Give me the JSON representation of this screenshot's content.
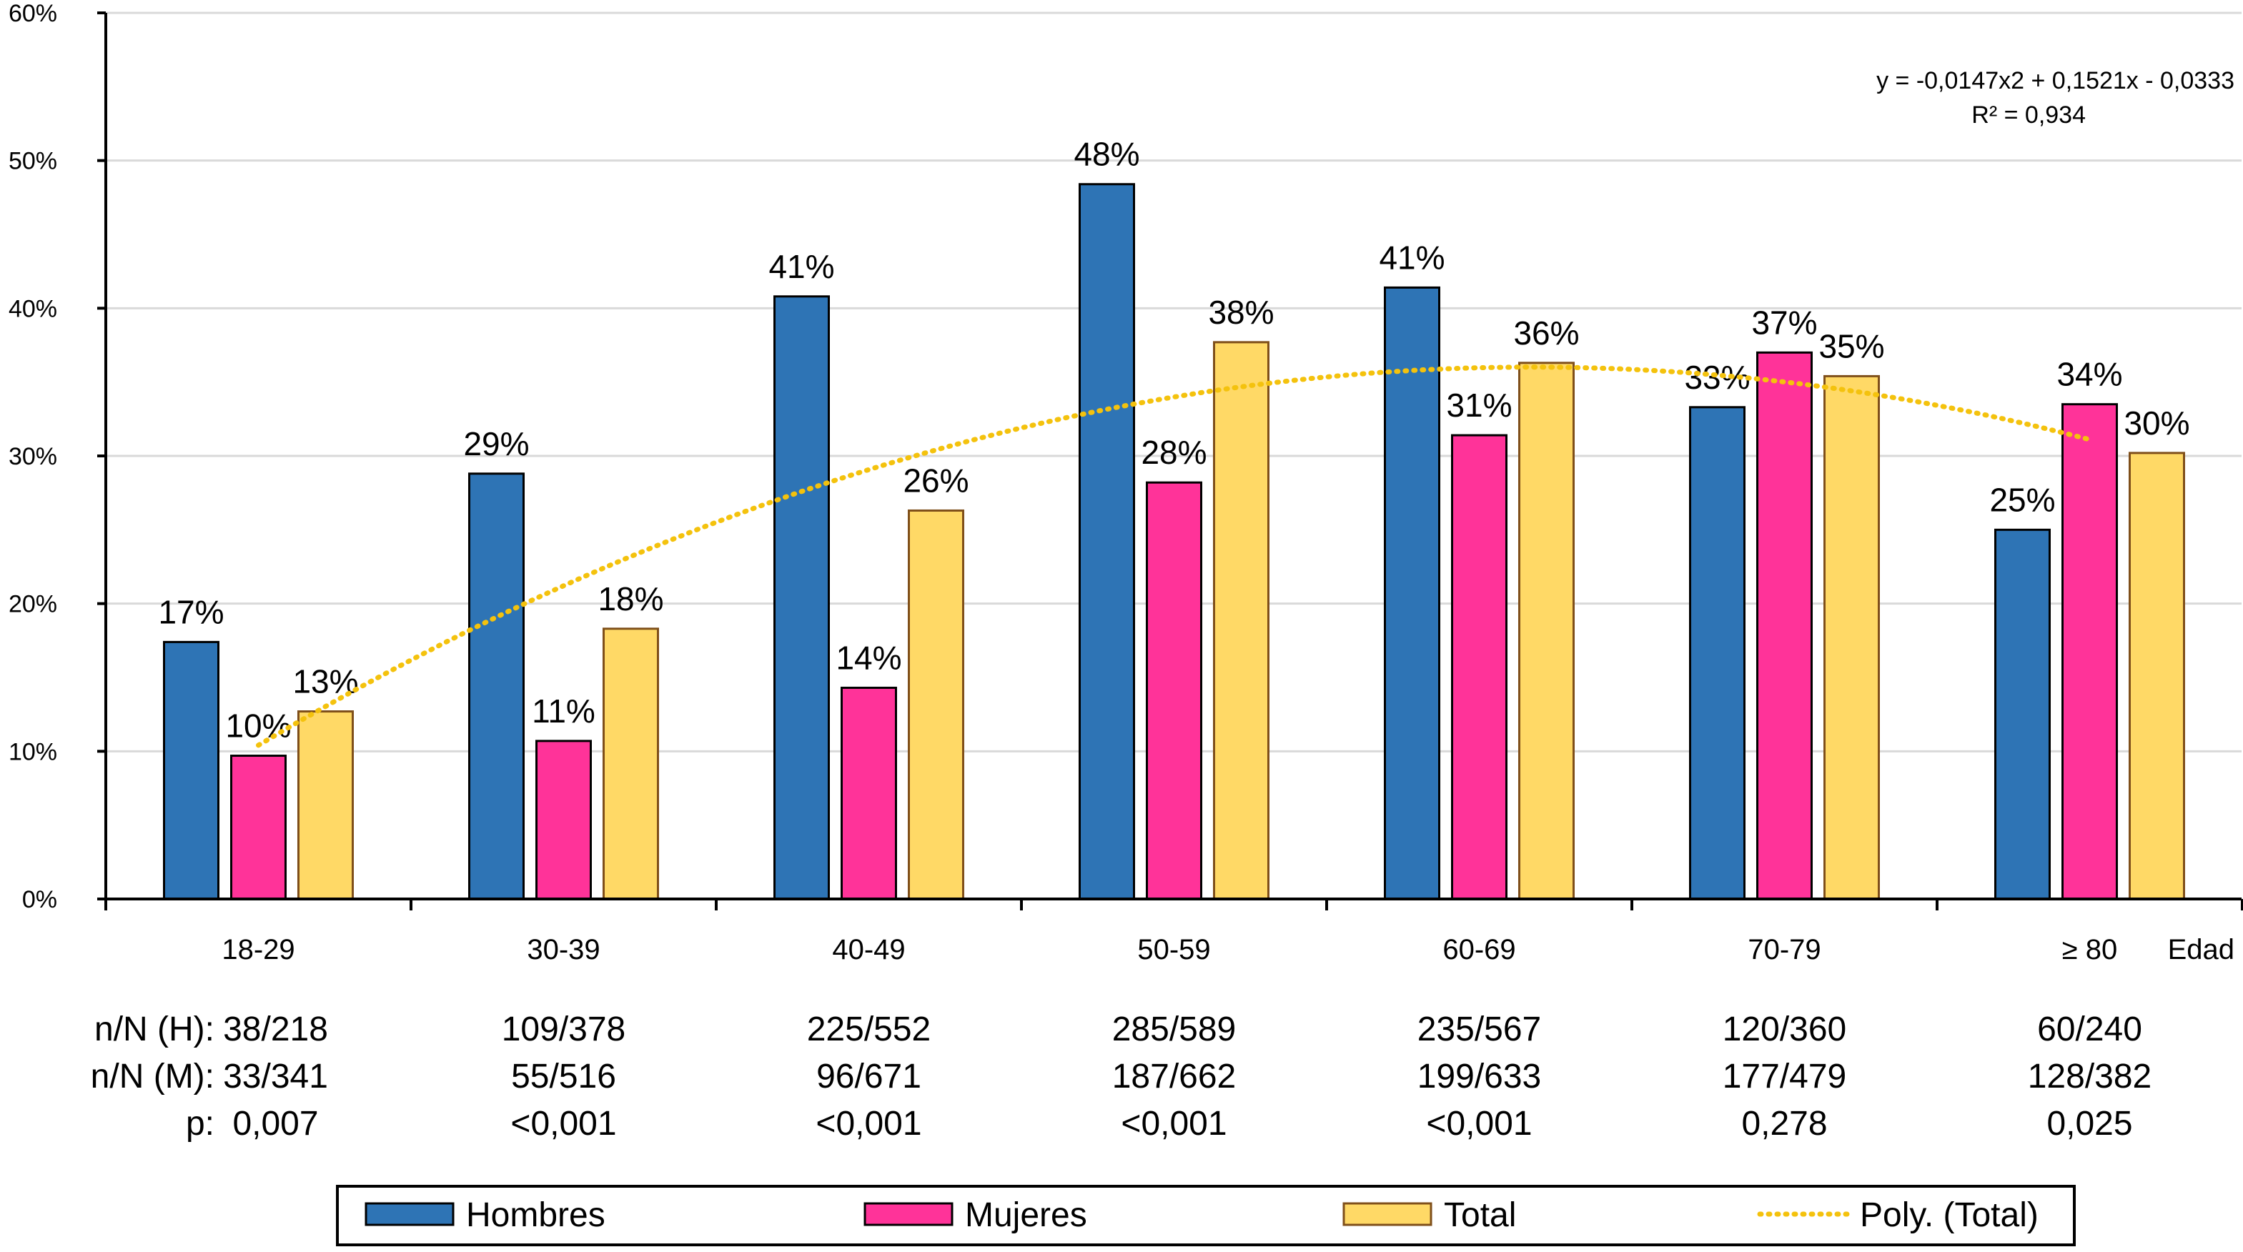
{
  "chart_data": {
    "type": "bar",
    "categories": [
      "18-29",
      "30-39",
      "40-49",
      "50-59",
      "60-69",
      "70-79",
      "≥ 80"
    ],
    "x_axis_end_label": "Edad",
    "ylim": [
      0,
      60
    ],
    "y_ticks": [
      "0%",
      "10%",
      "20%",
      "30%",
      "40%",
      "50%",
      "60%"
    ],
    "y_tick_values": [
      0,
      10,
      20,
      30,
      40,
      50,
      60
    ],
    "series": [
      {
        "name": "Hombres",
        "color": "#2E74B5",
        "values": [
          17.4,
          28.8,
          40.8,
          48.4,
          41.4,
          33.3,
          25.0
        ],
        "labels": [
          "17%",
          "29%",
          "41%",
          "48%",
          "41%",
          "33%",
          "25%"
        ]
      },
      {
        "name": "Mujeres",
        "color": "#FF3399",
        "values": [
          9.7,
          10.7,
          14.3,
          28.2,
          31.4,
          37.0,
          33.5
        ],
        "labels": [
          "10%",
          "11%",
          "14%",
          "28%",
          "31%",
          "37%",
          "34%"
        ]
      },
      {
        "name": "Total",
        "color": "#FFD966",
        "values": [
          12.7,
          18.3,
          26.3,
          37.7,
          36.3,
          35.4,
          30.2
        ],
        "labels": [
          "13%",
          "18%",
          "26%",
          "38%",
          "36%",
          "35%",
          "30%"
        ]
      }
    ],
    "trendline": {
      "name": "Poly. (Total)",
      "color": "#F4C20D",
      "coefficients": [
        -0.0333,
        0.1521,
        -0.0147
      ],
      "equation": "y = -0,0147x2 + 0,1521x - 0,0333",
      "r2": "R² = 0,934"
    },
    "table_rows": [
      {
        "label": "n/N (H):",
        "label_color": "#2E5AAC",
        "values": [
          "38/218",
          "109/378",
          "225/552",
          "285/589",
          "235/567",
          "120/360",
          "60/240"
        ]
      },
      {
        "label": "n/N (M):",
        "label_color": "#E8348C",
        "values": [
          "33/341",
          "55/516",
          "96/671",
          "187/662",
          "199/633",
          "177/479",
          "128/382"
        ]
      },
      {
        "label": "p:",
        "label_color": "#000000",
        "values": [
          "0,007",
          "<0,001",
          "<0,001",
          "<0,001",
          "<0,001",
          "0,278",
          "0,025"
        ]
      }
    ],
    "legend": {
      "placement": "bottom",
      "items": [
        "Hombres",
        "Mujeres",
        "Total",
        "Poly. (Total)"
      ]
    }
  }
}
